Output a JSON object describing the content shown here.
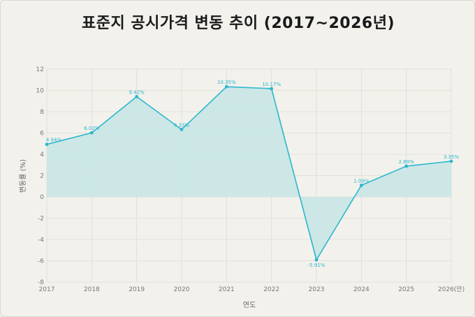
{
  "title": "표준지 공시가격 변동 추이 (2017~2026년)",
  "colors": {
    "line": "#2bb8cc",
    "fill": "#c8e6e6",
    "grid": "#dcdcd6",
    "background": "#f2f1ec"
  },
  "chart_data": {
    "type": "area",
    "title": "표준지 공시가격 변동 추이 (2017~2026년)",
    "xlabel": "연도",
    "ylabel": "변동률 (%)",
    "ylim": [
      -8,
      12
    ],
    "yticks": [
      12,
      10,
      8,
      6,
      4,
      2,
      0,
      -2,
      -4,
      -6,
      -8
    ],
    "grid": true,
    "categories": [
      "2017",
      "2018",
      "2019",
      "2020",
      "2021",
      "2022",
      "2023",
      "2024",
      "2025",
      "2026(안)"
    ],
    "values": [
      4.94,
      6.02,
      9.42,
      6.33,
      10.35,
      10.17,
      -5.91,
      1.09,
      2.89,
      3.35
    ],
    "data_labels": [
      "4.94%",
      "6.02%",
      "9.42%",
      "6.33%",
      "10.35%",
      "10.17%",
      "-5.91%",
      "1.09%",
      "2.89%",
      "3.35%"
    ]
  }
}
